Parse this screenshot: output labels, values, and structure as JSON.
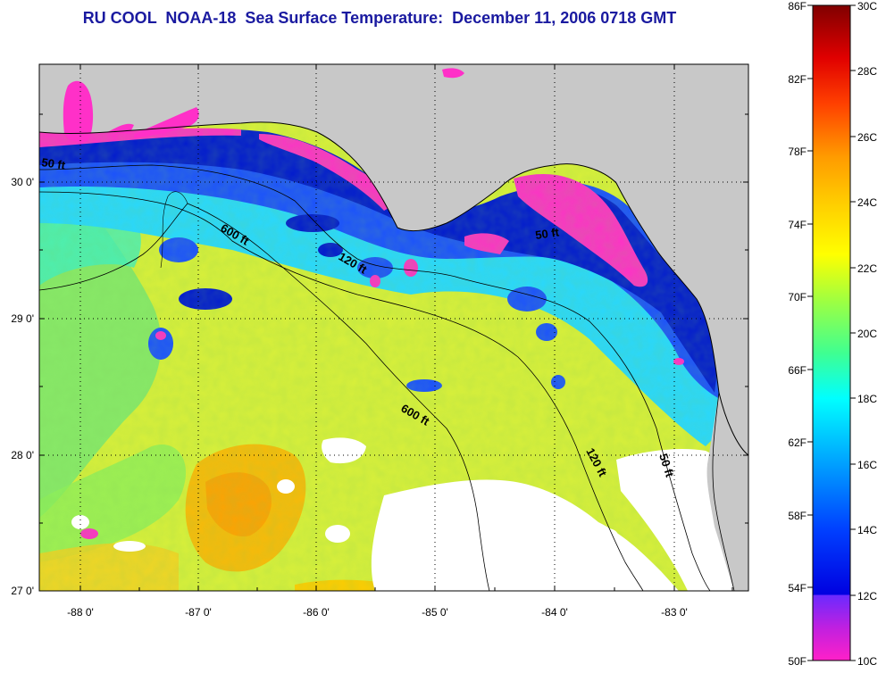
{
  "title": "RU COOL  NOAA-18  Sea Surface Temperature:  December 11, 2006 0718 GMT",
  "axes": {
    "lat_ticks": [
      "30 0'",
      "29 0'",
      "28 0'",
      "27 0'"
    ],
    "lon_ticks": [
      "-88 0'",
      "-87 0'",
      "-86 0'",
      "-85 0'",
      "-84 0'",
      "-83 0'"
    ]
  },
  "contours": [
    "50 ft",
    "600 ft",
    "120 ft",
    "50 ft",
    "600 ft",
    "120 ft",
    "50 ft"
  ],
  "colorbar": {
    "fahrenheit_labels": [
      "86F",
      "82F",
      "78F",
      "74F",
      "70F",
      "66F",
      "62F",
      "58F",
      "54F",
      "50F"
    ],
    "celsius_labels": [
      "30C",
      "28C",
      "26C",
      "24C",
      "22C",
      "20C",
      "18C",
      "16C",
      "14C",
      "12C",
      "10C"
    ],
    "colors": [
      "#800000",
      "#c00000",
      "#ff0000",
      "#ff5a00",
      "#ff9a00",
      "#ffcc00",
      "#ffff00",
      "#a0ff40",
      "#40ff90",
      "#00ffff",
      "#00a0ff",
      "#0040ff",
      "#0000e0",
      "#5a2aff",
      "#a020f0",
      "#ff20c8"
    ]
  },
  "colors": {
    "title": "#1a1aa0",
    "land": "#c8c8c8",
    "no_data": "#ffffff"
  }
}
